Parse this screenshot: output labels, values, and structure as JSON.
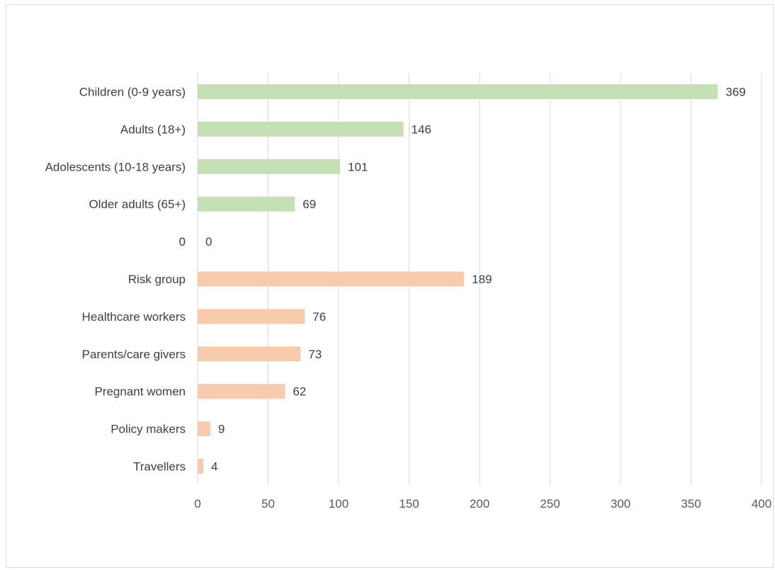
{
  "chart_data": {
    "type": "bar",
    "orientation": "horizontal",
    "categories": [
      "Children (0-9 years)",
      "Adults (18+)",
      "Adolescents (10-18 years)",
      "Older adults (65+)",
      "0",
      "Risk group",
      "Healthcare workers",
      "Parents/care givers",
      "Pregnant women",
      "Policy makers",
      "Travellers"
    ],
    "values": [
      369,
      146,
      101,
      69,
      0,
      189,
      76,
      73,
      62,
      9,
      4
    ],
    "bar_colors": [
      "#c5e0b4",
      "#c5e0b4",
      "#c5e0b4",
      "#c5e0b4",
      "#c5e0b4",
      "#f8cbad",
      "#f8cbad",
      "#f8cbad",
      "#f8cbad",
      "#f8cbad",
      "#f8cbad"
    ],
    "xlim": [
      0,
      400
    ],
    "x_ticks": [
      0,
      50,
      100,
      150,
      200,
      250,
      300,
      350,
      400
    ],
    "data_labels": true,
    "grid": "vertical",
    "title": "",
    "xlabel": "",
    "ylabel": ""
  },
  "colors": {
    "gridline": "#d9d9d9",
    "text": "#404040",
    "tick_text": "#595959"
  }
}
